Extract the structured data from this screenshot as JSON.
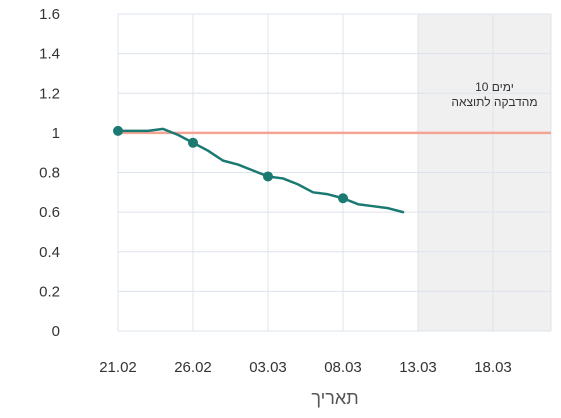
{
  "chart_data": {
    "type": "line",
    "xlabel": "תאריך",
    "x_ticks": [
      "21.02",
      "26.02",
      "03.03",
      "08.03",
      "13.03",
      "18.03"
    ],
    "y_ticks": [
      "0",
      "0.2",
      "0.4",
      "0.6",
      "0.8",
      "1",
      "1.2",
      "1.4",
      "1.6"
    ],
    "ylim": [
      0,
      1.6
    ],
    "xlim_days": [
      0,
      29
    ],
    "grid": true,
    "reference_line": {
      "value": 1,
      "color": "#f4a494"
    },
    "shaded_region": {
      "from_label": "13.03",
      "to_label": "end",
      "color": "#f0f0f0"
    },
    "annotation": {
      "line1": "10 ימים",
      "line2": "מהדבקה לתוצאה"
    },
    "series": [
      {
        "color": "#1a7a72",
        "x": [
          "21.02",
          "22.02",
          "23.02",
          "24.02",
          "25.02",
          "26.02",
          "27.02",
          "28.02",
          "01.03",
          "02.03",
          "03.03",
          "04.03",
          "05.03",
          "06.03",
          "07.03",
          "08.03",
          "09.03",
          "10.03",
          "11.03",
          "12.03"
        ],
        "values": [
          1.01,
          1.01,
          1.01,
          1.02,
          0.99,
          0.95,
          0.91,
          0.86,
          0.84,
          0.81,
          0.78,
          0.77,
          0.74,
          0.7,
          0.69,
          0.67,
          0.64,
          0.63,
          0.62,
          0.6
        ],
        "markers_at": [
          "21.02",
          "26.02",
          "03.03",
          "08.03"
        ]
      }
    ]
  }
}
